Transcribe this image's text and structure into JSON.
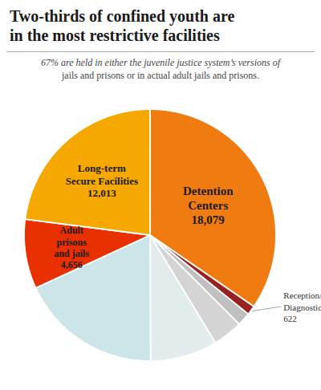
{
  "chart_data": {
    "type": "pie",
    "title": "Two-thirds of confined youth are\nin the most restrictive facilities",
    "subtitle": "67% are held in either the juvenile justice system’s versions of\njails and prisons or in actual adult jails and prisons.",
    "categories": [
      "Detention\nCenters",
      "Reception/\nDiagnostic",
      null,
      null,
      null,
      null,
      "Adult\nprisons\nand jails",
      "Long-term\nSecure Facilities"
    ],
    "values": [
      18079,
      622,
      900,
      2000,
      4500,
      9500,
      4656,
      12013
    ],
    "value_labels": [
      "18,079",
      "622",
      null,
      null,
      null,
      null,
      "4,656",
      "12,013"
    ],
    "colors": [
      "#F07B10",
      "#9B2020",
      "#C0C0C0",
      "#D4D4D4",
      "#E2ECEC",
      "#CBE5E8",
      "#E83000",
      "#F5A800"
    ],
    "data_labels": true
  }
}
